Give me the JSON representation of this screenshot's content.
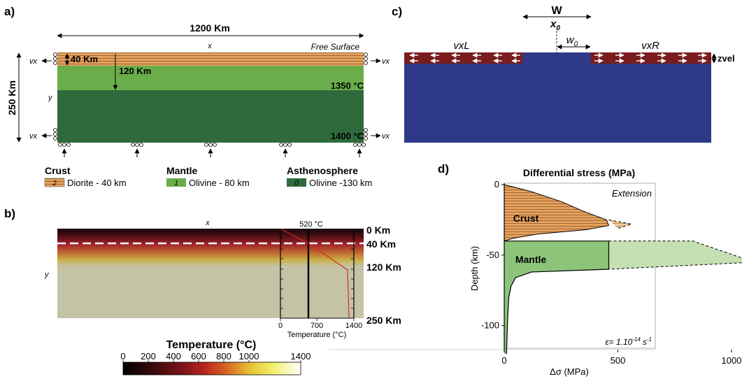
{
  "panel_a": {
    "label": "a)",
    "width_label": "1200 Km",
    "height_label": "250 Km",
    "crust_thickness_label": "40 Km",
    "lithosphere_thickness_label": "120 Km",
    "x_axis": "x",
    "y_axis": "y",
    "free_surface": "Free Surface",
    "temp_top_mantle": "1350 °C",
    "temp_bottom": "1400 °C",
    "bc_label": "vx",
    "colors": {
      "crust": "#e6a15e",
      "crust_line": "#8a5a2b",
      "mantle": "#6aad4a",
      "asthenosphere": "#2e6a3c"
    },
    "legend": {
      "crust": {
        "title": "Crust",
        "index": "2",
        "text": "Diorite - 40 km"
      },
      "mantle": {
        "title": "Mantle",
        "index": "1",
        "text": "Olivine - 80 km"
      },
      "asthenosphere": {
        "title": "Asthenosphere",
        "index": "0",
        "text": "Olivine -130 km"
      }
    }
  },
  "panel_b": {
    "label": "b)",
    "x_axis": "x",
    "y_axis": "y",
    "depth_labels": [
      "0 Km",
      "40 Km",
      "120 Km",
      "250 Km"
    ],
    "inset": {
      "top_label": "520 °C",
      "ticks": [
        "0",
        "700",
        "1400"
      ],
      "xlabel": "Temperature (°C)"
    },
    "colorbar": {
      "title": "Temperature (°C)",
      "ticks": [
        "0",
        "200",
        "400",
        "600",
        "800",
        "1000",
        "1400"
      ]
    }
  },
  "panel_c": {
    "label": "c)",
    "W": "W",
    "x0": "x",
    "x0_sub": "0",
    "w0": "w",
    "w0_sub": "0",
    "vxL": "vxL",
    "vxR": "vxR",
    "zvel": "zvel",
    "colors": {
      "model": "#2e3a87",
      "plate": "#7a1c1e"
    }
  },
  "panel_d": {
    "label": "d)",
    "title": "Differential stress (MPa)",
    "regime": "Extension",
    "crust_label": "Crust",
    "mantle_label": "Mantle",
    "strain_rate": "ε= 1.10",
    "strain_rate_exp": "-14",
    "strain_rate_unit": "s",
    "strain_rate_unit_exp": "-1"
  },
  "chart_data": {
    "type": "area",
    "title": "Differential stress (MPa)",
    "xlabel": "Δσ (MPa)",
    "ylabel": "Depth (km)",
    "xlim": [
      0,
      1200
    ],
    "ylim": [
      -120,
      0
    ],
    "xticks": [
      0,
      500,
      1000
    ],
    "yticks": [
      0,
      -50,
      -100
    ],
    "series": [
      {
        "name": "Crust",
        "x": [
          0,
          120,
          250,
          350,
          450,
          460,
          360,
          150,
          40,
          0
        ],
        "y": [
          0,
          -5,
          -12,
          -19,
          -25,
          -29,
          -32,
          -35,
          -38,
          -40
        ]
      },
      {
        "name": "Mantle",
        "x": [
          0,
          460,
          460,
          120,
          50,
          30,
          20,
          15,
          10
        ],
        "y": [
          -40,
          -40,
          -60,
          -62,
          -66,
          -72,
          -80,
          -95,
          -120
        ]
      },
      {
        "name": "Crust (dashed)",
        "x": [
          460,
          560,
          500
        ],
        "y": [
          -25,
          -28,
          -31
        ]
      },
      {
        "name": "Mantle (dashed)",
        "x": [
          460,
          830,
          1100,
          460
        ],
        "y": [
          -40,
          -40,
          -55,
          -60
        ]
      }
    ]
  }
}
